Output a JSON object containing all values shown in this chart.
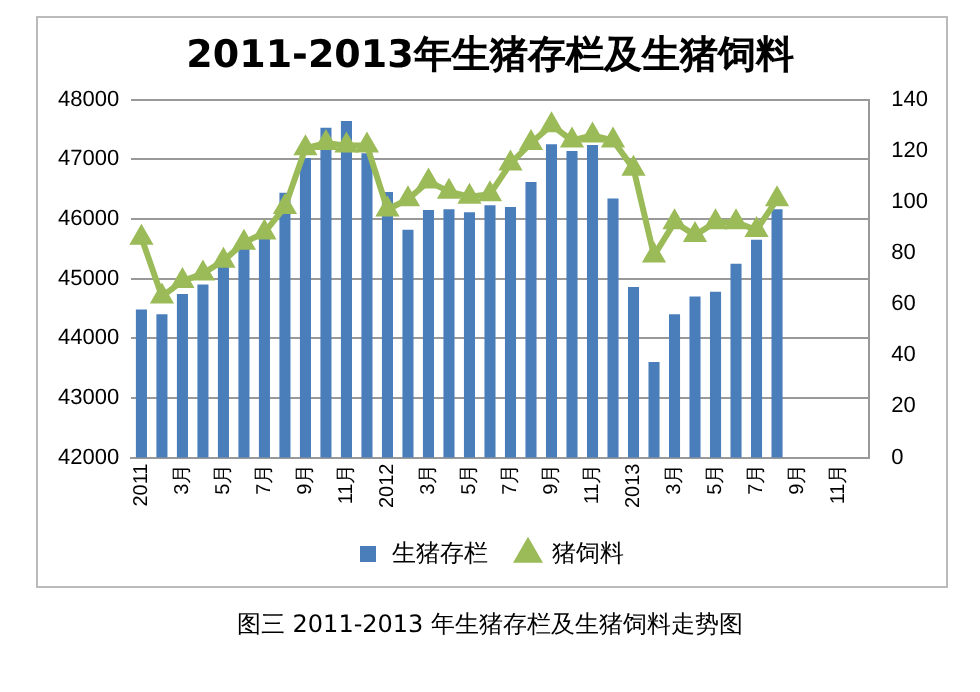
{
  "chart_data": {
    "type": "bar",
    "title": "2011-2013年生猪存栏及生猪饲料",
    "categories": [
      "2011",
      null,
      "3月",
      null,
      "5月",
      null,
      "7月",
      null,
      "9月",
      null,
      "11月",
      null,
      "2012",
      null,
      "3月",
      null,
      "5月",
      null,
      "7月",
      null,
      "9月",
      null,
      "11月",
      null,
      "2013",
      null,
      "3月",
      null,
      "5月",
      null,
      "7月",
      null,
      "9月",
      null,
      "11月",
      null
    ],
    "series": [
      {
        "name": "生猪存栏",
        "color": "#4a7ebb",
        "values": [
          44480,
          44400,
          44740,
          44900,
          45220,
          45540,
          45840,
          46440,
          47020,
          47530,
          47640,
          47100,
          46450,
          45820,
          46150,
          46160,
          46110,
          46230,
          46200,
          46620,
          47250,
          47140,
          47240,
          46340,
          44860,
          43600,
          44400,
          44700,
          44780,
          45250,
          45650,
          46160,
          null,
          null,
          null,
          null
        ]
      },
      {
        "name": "猪饲料",
        "type": "line",
        "axis": "y2",
        "color": "#9bbb59",
        "values": [
          86,
          63,
          69,
          72,
          77,
          84,
          88,
          98,
          121,
          123,
          122,
          122,
          97,
          101,
          108,
          104,
          102,
          103,
          115,
          123,
          130,
          124,
          126,
          124,
          113,
          79,
          92,
          87,
          92,
          92,
          89,
          101,
          null,
          null,
          null,
          null
        ]
      }
    ],
    "ylim": [
      42000,
      48000
    ],
    "yticks": [
      42000,
      43000,
      44000,
      45000,
      46000,
      47000,
      48000
    ],
    "y2lim": [
      0,
      140
    ],
    "y2ticks": [
      0,
      20,
      40,
      60,
      80,
      100,
      120,
      140
    ],
    "grid": "y",
    "legend": "bottom",
    "marker": "triangle",
    "line_style": "solid",
    "annotations": [
      "图三 2011-2013 年生猪存栏及生猪饲料走势图"
    ]
  }
}
